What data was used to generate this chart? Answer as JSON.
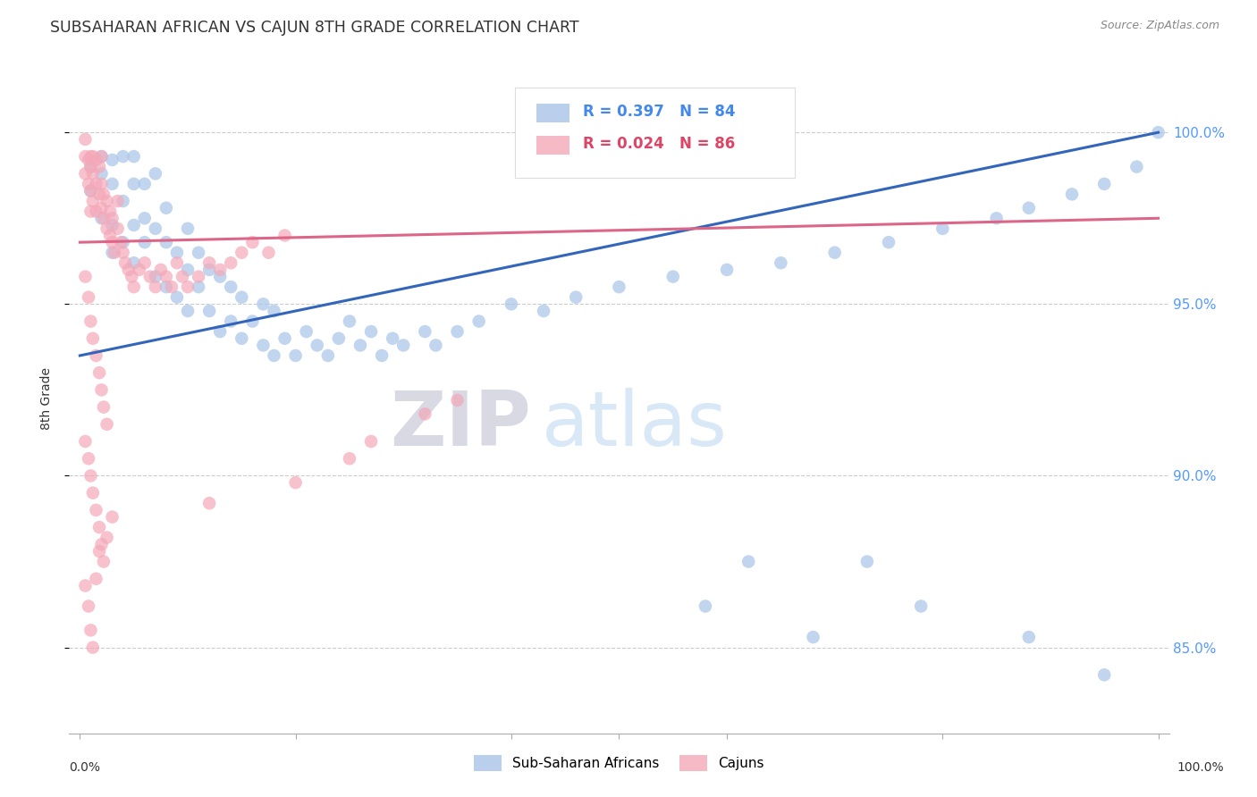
{
  "title": "SUBSAHARAN AFRICAN VS CAJUN 8TH GRADE CORRELATION CHART",
  "source": "Source: ZipAtlas.com",
  "ylabel": "8th Grade",
  "ytick_values": [
    0.85,
    0.9,
    0.95,
    1.0
  ],
  "legend1_label": "Sub-Saharan Africans",
  "legend2_label": "Cajuns",
  "R_blue": 0.397,
  "N_blue": 84,
  "R_pink": 0.024,
  "N_pink": 86,
  "blue_color": "#A8C4E8",
  "pink_color": "#F4A8B8",
  "blue_line_color": "#3366BB",
  "pink_line_color": "#DD6688",
  "grid_color": "#CCCCCC",
  "background_color": "#FFFFFF",
  "watermark_zip": "ZIP",
  "watermark_atlas": "atlas",
  "ymin": 0.825,
  "ymax": 1.02,
  "blue_scatter_x": [
    0.01,
    0.01,
    0.02,
    0.02,
    0.02,
    0.03,
    0.03,
    0.03,
    0.03,
    0.04,
    0.04,
    0.04,
    0.05,
    0.05,
    0.05,
    0.05,
    0.06,
    0.06,
    0.06,
    0.07,
    0.07,
    0.07,
    0.08,
    0.08,
    0.08,
    0.09,
    0.09,
    0.1,
    0.1,
    0.1,
    0.11,
    0.11,
    0.12,
    0.12,
    0.13,
    0.13,
    0.14,
    0.14,
    0.15,
    0.15,
    0.16,
    0.17,
    0.17,
    0.18,
    0.18,
    0.19,
    0.2,
    0.21,
    0.22,
    0.23,
    0.24,
    0.25,
    0.26,
    0.27,
    0.28,
    0.29,
    0.3,
    0.32,
    0.33,
    0.35,
    0.37,
    0.4,
    0.43,
    0.46,
    0.5,
    0.55,
    0.6,
    0.65,
    0.7,
    0.75,
    0.8,
    0.85,
    0.88,
    0.92,
    0.95,
    0.98,
    1.0,
    0.58,
    0.62,
    0.68,
    0.73,
    0.78,
    0.88,
    0.95
  ],
  "blue_scatter_y": [
    0.99,
    0.983,
    0.988,
    0.975,
    0.993,
    0.965,
    0.985,
    0.992,
    0.973,
    0.968,
    0.98,
    0.993,
    0.962,
    0.973,
    0.985,
    0.993,
    0.968,
    0.975,
    0.985,
    0.958,
    0.972,
    0.988,
    0.955,
    0.968,
    0.978,
    0.952,
    0.965,
    0.948,
    0.96,
    0.972,
    0.955,
    0.965,
    0.948,
    0.96,
    0.942,
    0.958,
    0.945,
    0.955,
    0.94,
    0.952,
    0.945,
    0.938,
    0.95,
    0.935,
    0.948,
    0.94,
    0.935,
    0.942,
    0.938,
    0.935,
    0.94,
    0.945,
    0.938,
    0.942,
    0.935,
    0.94,
    0.938,
    0.942,
    0.938,
    0.942,
    0.945,
    0.95,
    0.948,
    0.952,
    0.955,
    0.958,
    0.96,
    0.962,
    0.965,
    0.968,
    0.972,
    0.975,
    0.978,
    0.982,
    0.985,
    0.99,
    1.0,
    0.862,
    0.875,
    0.853,
    0.875,
    0.862,
    0.853,
    0.842
  ],
  "pink_scatter_x": [
    0.005,
    0.005,
    0.005,
    0.008,
    0.008,
    0.01,
    0.01,
    0.01,
    0.01,
    0.012,
    0.012,
    0.012,
    0.015,
    0.015,
    0.015,
    0.018,
    0.018,
    0.02,
    0.02,
    0.02,
    0.022,
    0.022,
    0.025,
    0.025,
    0.028,
    0.028,
    0.03,
    0.03,
    0.032,
    0.035,
    0.035,
    0.038,
    0.04,
    0.042,
    0.045,
    0.048,
    0.05,
    0.055,
    0.06,
    0.065,
    0.07,
    0.075,
    0.08,
    0.085,
    0.09,
    0.095,
    0.1,
    0.11,
    0.12,
    0.13,
    0.14,
    0.15,
    0.16,
    0.175,
    0.19,
    0.005,
    0.008,
    0.01,
    0.012,
    0.015,
    0.018,
    0.02,
    0.022,
    0.025,
    0.005,
    0.008,
    0.01,
    0.012,
    0.015,
    0.018,
    0.02,
    0.022,
    0.005,
    0.008,
    0.01,
    0.012,
    0.015,
    0.018,
    0.025,
    0.03,
    0.12,
    0.27,
    0.32,
    0.35,
    0.2,
    0.25
  ],
  "pink_scatter_y": [
    0.998,
    0.993,
    0.988,
    0.992,
    0.985,
    0.99,
    0.983,
    0.977,
    0.993,
    0.988,
    0.98,
    0.993,
    0.985,
    0.977,
    0.992,
    0.982,
    0.99,
    0.978,
    0.985,
    0.993,
    0.975,
    0.982,
    0.972,
    0.98,
    0.97,
    0.977,
    0.968,
    0.975,
    0.965,
    0.972,
    0.98,
    0.968,
    0.965,
    0.962,
    0.96,
    0.958,
    0.955,
    0.96,
    0.962,
    0.958,
    0.955,
    0.96,
    0.958,
    0.955,
    0.962,
    0.958,
    0.955,
    0.958,
    0.962,
    0.96,
    0.962,
    0.965,
    0.968,
    0.965,
    0.97,
    0.958,
    0.952,
    0.945,
    0.94,
    0.935,
    0.93,
    0.925,
    0.92,
    0.915,
    0.91,
    0.905,
    0.9,
    0.895,
    0.89,
    0.885,
    0.88,
    0.875,
    0.868,
    0.862,
    0.855,
    0.85,
    0.87,
    0.878,
    0.882,
    0.888,
    0.892,
    0.91,
    0.918,
    0.922,
    0.898,
    0.905
  ]
}
